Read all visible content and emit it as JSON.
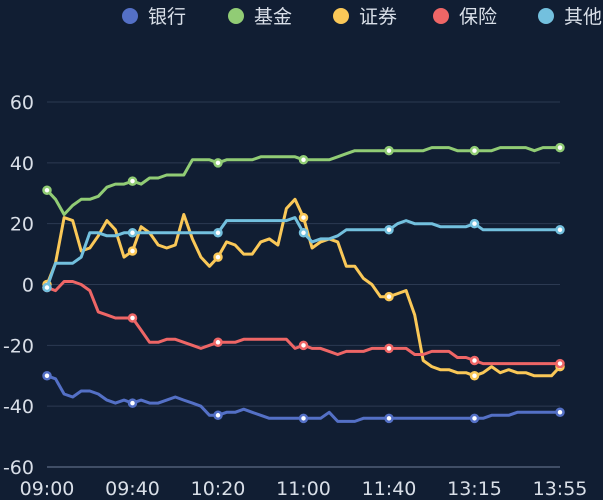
{
  "chart_data": {
    "type": "line",
    "title": "",
    "xlabel": "",
    "ylabel": "",
    "ylim": [
      -60,
      60
    ],
    "yticks": [
      60,
      40,
      20,
      0,
      -20,
      -40,
      -60
    ],
    "grid": "horizontal",
    "legend_position": "top",
    "x_tick_labels": [
      "09:00",
      "09:40",
      "10:20",
      "11:00",
      "11:40",
      "13:15",
      "13:55"
    ],
    "x_tick_positions": [
      0,
      10,
      20,
      30,
      40,
      50,
      60
    ],
    "x_count": 61,
    "marker_positions": [
      0,
      10,
      20,
      30,
      40,
      50,
      60
    ],
    "series": [
      {
        "name": "银行",
        "color": "#5470c6",
        "values": [
          -30,
          -31,
          -36,
          -37,
          -35,
          -35,
          -36,
          -38,
          -39,
          -38,
          -39,
          -38,
          -39,
          -39,
          -38,
          -37,
          -38,
          -39,
          -40,
          -43,
          -43,
          -42,
          -42,
          -41,
          -42,
          -43,
          -44,
          -44,
          -44,
          -44,
          -44,
          -44,
          -44,
          -42,
          -45,
          -45,
          -45,
          -44,
          -44,
          -44,
          -44,
          -44,
          -44,
          -44,
          -44,
          -44,
          -44,
          -44,
          -44,
          -44,
          -44,
          -44,
          -43,
          -43,
          -43,
          -42,
          -42,
          -42,
          -42,
          -42,
          -42
        ]
      },
      {
        "name": "基金",
        "color": "#91cc75",
        "values": [
          31,
          28,
          23,
          26,
          28,
          28,
          29,
          32,
          33,
          33,
          34,
          33,
          35,
          35,
          36,
          36,
          36,
          41,
          41,
          41,
          40,
          41,
          41,
          41,
          41,
          42,
          42,
          42,
          42,
          42,
          41,
          41,
          41,
          41,
          42,
          43,
          44,
          44,
          44,
          44,
          44,
          44,
          44,
          44,
          44,
          45,
          45,
          45,
          44,
          44,
          44,
          44,
          44,
          45,
          45,
          45,
          45,
          44,
          45,
          45,
          45
        ]
      },
      {
        "name": "证券",
        "color": "#fac858",
        "values": [
          0,
          7,
          22,
          21,
          11,
          12,
          16,
          21,
          18,
          9,
          11,
          19,
          17,
          13,
          12,
          13,
          23,
          15,
          9,
          6,
          9,
          14,
          13,
          10,
          10,
          14,
          15,
          13,
          25,
          28,
          22,
          12,
          14,
          15,
          14,
          6,
          6,
          2,
          0,
          -4,
          -4,
          -3,
          -2,
          -10,
          -25,
          -27,
          -28,
          -28,
          -29,
          -29,
          -30,
          -29,
          -27,
          -29,
          -28,
          -29,
          -29,
          -30,
          -30,
          -30,
          -27
        ]
      },
      {
        "name": "保险",
        "color": "#ee6666",
        "values": [
          -1,
          -2,
          1,
          1,
          0,
          -2,
          -9,
          -10,
          -11,
          -11,
          -11,
          -15,
          -19,
          -19,
          -18,
          -18,
          -19,
          -20,
          -21,
          -20,
          -19,
          -19,
          -19,
          -18,
          -18,
          -18,
          -18,
          -18,
          -18,
          -21,
          -20,
          -21,
          -21,
          -22,
          -23,
          -22,
          -22,
          -22,
          -21,
          -21,
          -21,
          -21,
          -21,
          -23,
          -23,
          -22,
          -22,
          -22,
          -24,
          -24,
          -25,
          -26,
          -26,
          -26,
          -26,
          -26,
          -26,
          -26,
          -26,
          -26,
          -26
        ]
      },
      {
        "name": "其他",
        "color": "#73c0de",
        "values": [
          -1,
          7,
          7,
          7,
          9,
          17,
          17,
          16,
          16,
          17,
          17,
          17,
          17,
          17,
          17,
          17,
          17,
          17,
          17,
          17,
          17,
          21,
          21,
          21,
          21,
          21,
          21,
          21,
          21,
          22,
          17,
          14,
          15,
          15,
          16,
          18,
          18,
          18,
          18,
          18,
          18,
          20,
          21,
          20,
          20,
          20,
          19,
          19,
          19,
          19,
          20,
          18,
          18,
          18,
          18,
          18,
          18,
          18,
          18,
          18,
          18
        ]
      }
    ]
  }
}
